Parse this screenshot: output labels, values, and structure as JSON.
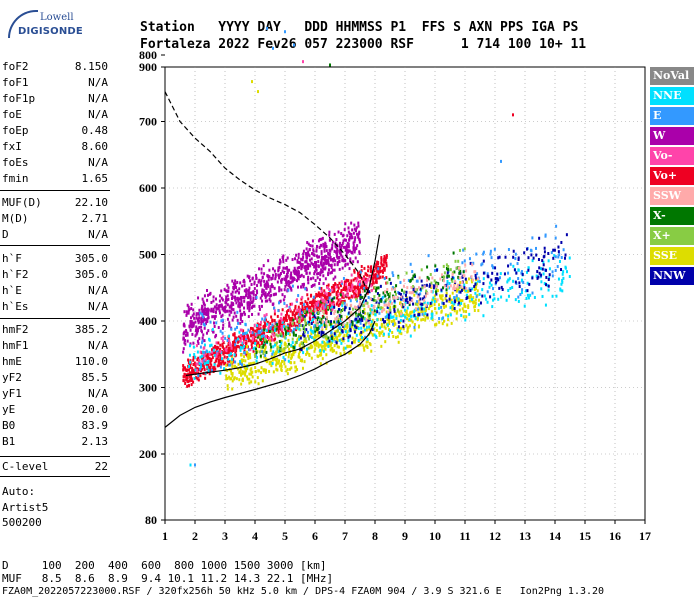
{
  "logo": {
    "line1": "Lowell",
    "line2": "DIGISONDE"
  },
  "header": {
    "line1": "Station   YYYY DAY   DDD HHMMSS P1  FFS S AXN PPS IGA PS",
    "line2": "Fortaleza 2022 Fev26 057 223000 RSF      1 714 100 10+ 11"
  },
  "params": [
    {
      "name": "foF2",
      "value": "8.150"
    },
    {
      "name": "foF1",
      "value": "N/A"
    },
    {
      "name": "foF1p",
      "value": "N/A"
    },
    {
      "name": "foE",
      "value": "N/A"
    },
    {
      "name": "foEp",
      "value": "0.48"
    },
    {
      "name": "fxI",
      "value": "8.60"
    },
    {
      "name": "foEs",
      "value": "N/A"
    },
    {
      "name": "fmin",
      "value": "1.65"
    },
    {
      "name": "MUF(D)",
      "value": "22.10"
    },
    {
      "name": "M(D)",
      "value": "2.71"
    },
    {
      "name": "D",
      "value": "N/A"
    },
    {
      "name": "h`F",
      "value": "305.0"
    },
    {
      "name": "h`F2",
      "value": "305.0"
    },
    {
      "name": "h`E",
      "value": "N/A"
    },
    {
      "name": "h`Es",
      "value": "N/A"
    },
    {
      "name": "hmF2",
      "value": "385.2"
    },
    {
      "name": "hmF1",
      "value": "N/A"
    },
    {
      "name": "hmE",
      "value": "110.0"
    },
    {
      "name": "yF2",
      "value": "85.5"
    },
    {
      "name": "yF1",
      "value": "N/A"
    },
    {
      "name": "yE",
      "value": "20.0"
    },
    {
      "name": "B0",
      "value": "83.9"
    },
    {
      "name": "B1",
      "value": "2.13"
    },
    {
      "name": "C-level",
      "value": "22"
    }
  ],
  "autoscaling": {
    "label": "Auto:",
    "artist": "Artist5",
    "version": "500200"
  },
  "legend": [
    {
      "label": "NoVal",
      "bg": "#888888",
      "fg": "#ffffff"
    },
    {
      "label": "NNE",
      "bg": "#00e0ff",
      "fg": "#ffffff"
    },
    {
      "label": "E",
      "bg": "#3399ff",
      "fg": "#ffffff"
    },
    {
      "label": "W",
      "bg": "#aa00aa",
      "fg": "#ffffff"
    },
    {
      "label": "Vo-",
      "bg": "#ff44aa",
      "fg": "#ffffff"
    },
    {
      "label": "Vo+",
      "bg": "#ee0022",
      "fg": "#ffffff"
    },
    {
      "label": "SSW",
      "bg": "#ffaaaa",
      "fg": "#ffffff"
    },
    {
      "label": "X-",
      "bg": "#007700",
      "fg": "#ffffff"
    },
    {
      "label": "X+",
      "bg": "#88cc44",
      "fg": "#ffffff"
    },
    {
      "label": "SSE",
      "bg": "#dddd00",
      "fg": "#ffffff"
    },
    {
      "label": "NNW",
      "bg": "#0000aa",
      "fg": "#ffffff"
    }
  ],
  "footer": {
    "line1": "D     100  200  400  600  800 1000 1500 3000 [km]",
    "line2": "MUF   8.5  8.6  8.9  9.4 10.1 11.2 14.3 22.1 [MHz]",
    "line3": "FZA0M_2022057223000.RSF / 320fx256h 50 kHz 5.0 km / DPS-4 FZA0M 904 / 3.9 S 321.6 E   Ion2Png 1.3.20"
  },
  "chart_data": {
    "type": "scatter",
    "xlim": [
      1,
      17
    ],
    "ylim": [
      80,
      900
    ],
    "xticks": [
      1,
      2,
      3,
      4,
      5,
      6,
      7,
      8,
      9,
      10,
      11,
      12,
      13,
      14,
      15,
      16,
      17
    ],
    "yticks": [
      80,
      200,
      300,
      400,
      500,
      600,
      700,
      800,
      900
    ],
    "grid": true,
    "curves": [
      {
        "style": "dashed",
        "points": [
          [
            1.0,
            745
          ],
          [
            1.5,
            700
          ],
          [
            2,
            675
          ],
          [
            2.5,
            655
          ],
          [
            3,
            630
          ],
          [
            3.5,
            612
          ],
          [
            4,
            597
          ],
          [
            4.5,
            585
          ],
          [
            5,
            575
          ],
          [
            5.5,
            563
          ],
          [
            6,
            545
          ],
          [
            6.5,
            525
          ],
          [
            7,
            500
          ],
          [
            7.5,
            470
          ],
          [
            7.8,
            440
          ]
        ]
      },
      {
        "style": "solid",
        "points": [
          [
            1.0,
            240
          ],
          [
            1.5,
            258
          ],
          [
            2,
            270
          ],
          [
            2.5,
            278
          ],
          [
            3,
            285
          ],
          [
            4,
            297
          ],
          [
            5,
            310
          ],
          [
            5.5,
            318
          ],
          [
            6,
            328
          ],
          [
            6.5,
            340
          ],
          [
            7,
            350
          ],
          [
            7.5,
            365
          ],
          [
            7.8,
            380
          ],
          [
            8.0,
            400
          ]
        ]
      },
      {
        "style": "solid",
        "points": [
          [
            1.7,
            318
          ],
          [
            2,
            320
          ],
          [
            2.5,
            323
          ],
          [
            3,
            326
          ],
          [
            3.5,
            330
          ],
          [
            4,
            335
          ],
          [
            4.5,
            343
          ],
          [
            5,
            352
          ],
          [
            5.5,
            358
          ],
          [
            6,
            370
          ],
          [
            6.5,
            385
          ],
          [
            7,
            400
          ],
          [
            7.5,
            420
          ],
          [
            7.8,
            450
          ],
          [
            8.0,
            490
          ],
          [
            8.15,
            530
          ]
        ]
      }
    ],
    "groups": [
      {
        "name": "W",
        "color": "#aa00aa",
        "count": 900,
        "x": [
          1.6,
          7.5
        ],
        "yCenter": [
          390,
          520
        ],
        "spread": 40
      },
      {
        "name": "Vo+",
        "color": "#ee0022",
        "count": 900,
        "x": [
          1.6,
          8.4
        ],
        "yCenter": [
          318,
          480
        ],
        "spread": 25
      },
      {
        "name": "SSE",
        "color": "#dddd00",
        "count": 700,
        "x": [
          3.0,
          11.5
        ],
        "yCenter": [
          320,
          440
        ],
        "spread": 35
      },
      {
        "name": "NNE",
        "color": "#00e0ff",
        "count": 350,
        "x": [
          1.8,
          14.5
        ],
        "yCenter": [
          340,
          470
        ],
        "spread": 40
      },
      {
        "name": "E",
        "color": "#3399ff",
        "count": 250,
        "x": [
          2.0,
          14.3
        ],
        "yCenter": [
          360,
          500
        ],
        "spread": 60
      },
      {
        "name": "NNW",
        "color": "#0000aa",
        "count": 260,
        "x": [
          5.5,
          14.4
        ],
        "yCenter": [
          380,
          500
        ],
        "spread": 45
      },
      {
        "name": "X-",
        "color": "#007700",
        "count": 150,
        "x": [
          4.0,
          11.0
        ],
        "yCenter": [
          360,
          480
        ],
        "spread": 35
      },
      {
        "name": "X+",
        "color": "#88cc44",
        "count": 120,
        "x": [
          4.0,
          11.0
        ],
        "yCenter": [
          360,
          480
        ],
        "spread": 35
      },
      {
        "name": "SSW",
        "color": "#ffaaaa",
        "count": 120,
        "x": [
          6.0,
          11.5
        ],
        "yCenter": [
          400,
          470
        ],
        "spread": 30
      },
      {
        "name": "Vo-",
        "color": "#ff44aa",
        "count": 120,
        "x": [
          2.0,
          8.0
        ],
        "yCenter": [
          340,
          470
        ],
        "spread": 25
      }
    ],
    "outliers": [
      {
        "x": 1.85,
        "y": 180,
        "color": "#00e0ff"
      },
      {
        "x": 2.0,
        "y": 180,
        "color": "#3399ff"
      },
      {
        "x": 3.9,
        "y": 760,
        "color": "#dddd00"
      },
      {
        "x": 4.1,
        "y": 745,
        "color": "#dddd00"
      },
      {
        "x": 4.4,
        "y": 840,
        "color": "#3399ff"
      },
      {
        "x": 4.6,
        "y": 810,
        "color": "#3399ff"
      },
      {
        "x": 5.0,
        "y": 835,
        "color": "#3399ff"
      },
      {
        "x": 5.3,
        "y": 815,
        "color": "#3399ff"
      },
      {
        "x": 5.6,
        "y": 790,
        "color": "#ff44aa"
      },
      {
        "x": 6.5,
        "y": 785,
        "color": "#007700"
      },
      {
        "x": 12.2,
        "y": 640,
        "color": "#3399ff"
      },
      {
        "x": 12.6,
        "y": 710,
        "color": "#ee0022"
      }
    ]
  }
}
